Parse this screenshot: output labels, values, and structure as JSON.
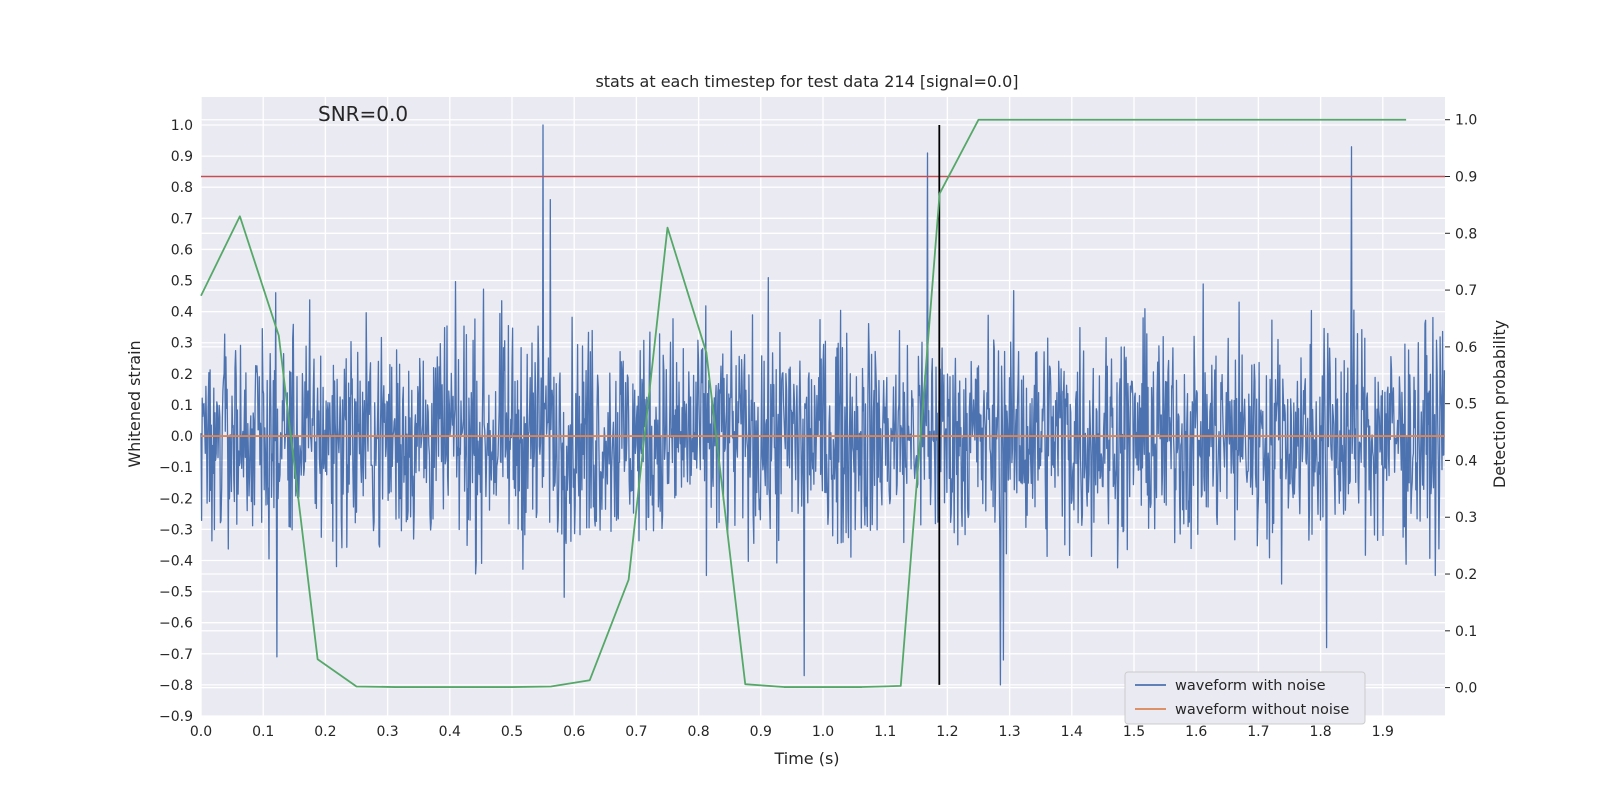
{
  "chart_data": {
    "type": "line",
    "title": "stats at each timestep for test data 214 [signal=0.0]",
    "xlabel": "Time (s)",
    "ylabel_left": "Whitened strain",
    "ylabel_right": "Detection probability",
    "annotation": "SNR=0.0",
    "xlim": [
      0,
      2.0
    ],
    "ylim_left": [
      -0.9,
      1.09
    ],
    "ylim_right": [
      -0.05,
      1.04
    ],
    "xticks": [
      0.0,
      0.1,
      0.2,
      0.3,
      0.4,
      0.5,
      0.6,
      0.7,
      0.8,
      0.9,
      1.0,
      1.1,
      1.2,
      1.3,
      1.4,
      1.5,
      1.6,
      1.7,
      1.8,
      1.9
    ],
    "xtick_labels": [
      "0.0",
      "0.1",
      "0.2",
      "0.3",
      "0.4",
      "0.5",
      "0.6",
      "0.7",
      "0.8",
      "0.9",
      "1.0",
      "1.1",
      "1.2",
      "1.3",
      "1.4",
      "1.5",
      "1.6",
      "1.7",
      "1.8",
      "1.9"
    ],
    "yticks_left": [
      -0.9,
      -0.8,
      -0.7,
      -0.6,
      -0.5,
      -0.4,
      -0.3,
      -0.2,
      -0.1,
      0.0,
      0.1,
      0.2,
      0.3,
      0.4,
      0.5,
      0.6,
      0.7,
      0.8,
      0.9,
      1.0
    ],
    "yticks_left_labels": [
      "−0.9",
      "−0.8",
      "−0.7",
      "−0.6",
      "−0.5",
      "−0.4",
      "−0.3",
      "−0.2",
      "−0.1",
      "0.0",
      "0.1",
      "0.2",
      "0.3",
      "0.4",
      "0.5",
      "0.6",
      "0.7",
      "0.8",
      "0.9",
      "1.0"
    ],
    "yticks_right": [
      0.0,
      0.1,
      0.2,
      0.3,
      0.4,
      0.5,
      0.6,
      0.7,
      0.8,
      0.9,
      1.0
    ],
    "yticks_right_labels": [
      "0.0",
      "0.1",
      "0.2",
      "0.3",
      "0.4",
      "0.5",
      "0.6",
      "0.7",
      "0.8",
      "0.9",
      "1.0"
    ],
    "grid": true,
    "legend_position": "bottom-right",
    "colors": {
      "noise": "#4c72b0",
      "clean": "#dd8452",
      "probability": "#55a868",
      "threshold": "#c44e52",
      "marker": "#000000",
      "axes_bg": "#eaeaf2",
      "grid": "#ffffff"
    },
    "series": [
      {
        "name": "waveform with noise",
        "axis": "left",
        "style": "dense-noise",
        "sample_count": 2048,
        "envelope": [
          -0.8,
          1.0
        ],
        "peaks": [
          {
            "x": 0.55,
            "y": 1.0
          },
          {
            "x": 0.562,
            "y": 0.76
          },
          {
            "x": 1.168,
            "y": 0.91
          },
          {
            "x": 1.85,
            "y": 0.93
          },
          {
            "x": 1.285,
            "y": -0.8
          },
          {
            "x": 1.29,
            "y": -0.72
          },
          {
            "x": 0.122,
            "y": -0.71
          },
          {
            "x": 0.97,
            "y": -0.77
          },
          {
            "x": 1.81,
            "y": -0.68
          }
        ]
      },
      {
        "name": "waveform without noise",
        "axis": "left",
        "x": [
          0.0,
          2.0
        ],
        "y": [
          0.0,
          0.0
        ]
      },
      {
        "axis": "right",
        "x": [
          0.0,
          0.0625,
          0.125,
          0.1875,
          0.25,
          0.3125,
          0.375,
          0.4375,
          0.5,
          0.5625,
          0.625,
          0.6875,
          0.75,
          0.8125,
          0.875,
          0.9375,
          1.0,
          1.0625,
          1.125,
          1.1875,
          1.25,
          1.3125,
          1.375,
          1.4375,
          1.5,
          1.5625,
          1.625,
          1.6875,
          1.75,
          1.8125,
          1.875,
          1.9375
        ],
        "y": [
          0.69,
          0.83,
          0.62,
          0.05,
          0.002,
          0.001,
          0.001,
          0.001,
          0.001,
          0.002,
          0.013,
          0.19,
          0.81,
          0.59,
          0.006,
          0.001,
          0.001,
          0.001,
          0.003,
          0.87,
          1.0,
          1.0,
          1.0,
          1.0,
          1.0,
          1.0,
          1.0,
          1.0,
          1.0,
          1.0,
          1.0,
          1.0
        ]
      },
      {
        "axis": "right",
        "x": [
          0.0,
          2.0
        ],
        "y": [
          0.9,
          0.9
        ]
      },
      {
        "axis": "left",
        "x": [
          1.187,
          1.187
        ],
        "y": [
          -0.8,
          1.0
        ]
      }
    ],
    "legend": [
      "waveform with noise",
      "waveform without noise"
    ]
  }
}
